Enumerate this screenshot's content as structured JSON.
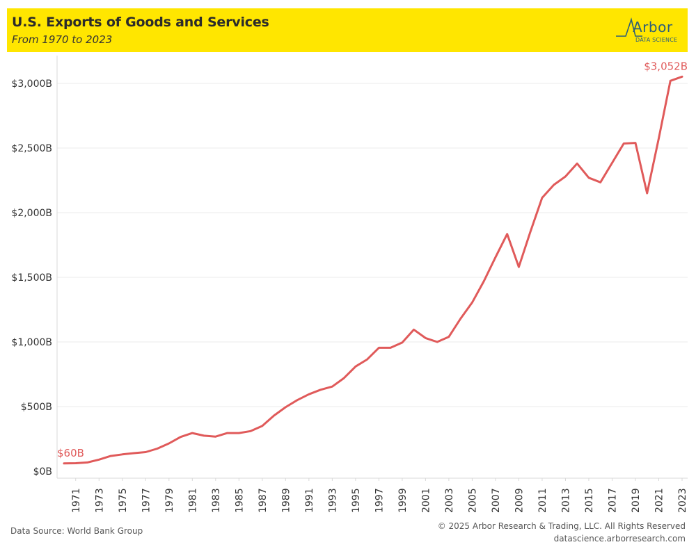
{
  "header": {
    "title": "U.S. Exports of Goods and Services",
    "subtitle": "From 1970 to 2023"
  },
  "logo": {
    "word": "Arbor",
    "sub": "DATA SCIENCE",
    "color": "#2d5f78"
  },
  "footer": {
    "source": "Data Source: World Bank Group",
    "copyright": "© 2025 Arbor Research & Trading, LLC. All Rights Reserved",
    "website": "datascience.arborresearch.com"
  },
  "colors": {
    "header_bg": "#ffe600",
    "line": "#e05a5a",
    "grid": "#ebebeb",
    "axis_text": "#333333"
  },
  "chart_data": {
    "type": "line",
    "title": "U.S. Exports of Goods and Services",
    "subtitle": "From 1970 to 2023",
    "xlabel": "",
    "ylabel": "",
    "ylim": [
      0,
      3200
    ],
    "xlim": [
      1970,
      2023
    ],
    "y_ticks": [
      0,
      500,
      1000,
      1500,
      2000,
      2500,
      3000
    ],
    "y_tick_labels": [
      "$0B",
      "$500B",
      "$1,000B",
      "$1,500B",
      "$2,000B",
      "$2,500B",
      "$3,000B"
    ],
    "x_ticks": [
      1971,
      1973,
      1975,
      1977,
      1979,
      1981,
      1983,
      1985,
      1987,
      1989,
      1991,
      1993,
      1995,
      1997,
      1999,
      2001,
      2003,
      2005,
      2007,
      2009,
      2011,
      2013,
      2015,
      2017,
      2019,
      2021,
      2023
    ],
    "grid": "horizontal",
    "annotations": [
      {
        "x": 1970,
        "y": 60,
        "text": "$60B"
      },
      {
        "x": 2023,
        "y": 3052,
        "text": "$3,052B"
      }
    ],
    "series": [
      {
        "name": "",
        "x": [
          1970,
          1971,
          1972,
          1973,
          1974,
          1975,
          1976,
          1977,
          1978,
          1979,
          1980,
          1981,
          1982,
          1983,
          1984,
          1985,
          1986,
          1987,
          1988,
          1989,
          1990,
          1991,
          1992,
          1993,
          1994,
          1995,
          1996,
          1997,
          1998,
          1999,
          2000,
          2001,
          2002,
          2003,
          2004,
          2005,
          2006,
          2007,
          2008,
          2009,
          2010,
          2011,
          2012,
          2013,
          2014,
          2015,
          2016,
          2017,
          2018,
          2019,
          2020,
          2021,
          2022,
          2023
        ],
        "y": [
          60,
          62,
          68,
          90,
          118,
          130,
          140,
          148,
          175,
          215,
          265,
          295,
          275,
          268,
          295,
          295,
          310,
          350,
          430,
          495,
          550,
          595,
          630,
          655,
          720,
          810,
          865,
          955,
          955,
          995,
          1095,
          1030,
          1000,
          1040,
          1180,
          1305,
          1470,
          1655,
          1835,
          1580,
          1855,
          2115,
          2215,
          2280,
          2380,
          2270,
          2235,
          2385,
          2535,
          2540,
          2150,
          2575,
          3020,
          3052
        ]
      }
    ]
  }
}
